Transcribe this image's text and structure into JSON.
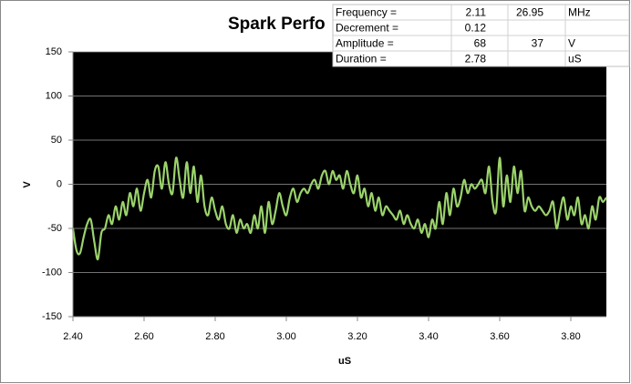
{
  "chart_data": {
    "type": "line",
    "title": "Spark Perfo",
    "xlabel": "uS",
    "ylabel": "V",
    "color": "#9bd36b",
    "background": "#000000",
    "grid": true,
    "xlim": [
      2.4,
      3.9
    ],
    "ylim": [
      -150,
      150
    ],
    "xticks": [
      {
        "value": 2.4,
        "label": "2.40"
      },
      {
        "value": 2.6,
        "label": "2.60"
      },
      {
        "value": 2.8,
        "label": "2.80"
      },
      {
        "value": 3.0,
        "label": "3.00"
      },
      {
        "value": 3.2,
        "label": "3.20"
      },
      {
        "value": 3.4,
        "label": "3.40"
      },
      {
        "value": 3.6,
        "label": "3.60"
      },
      {
        "value": 3.8,
        "label": "3.80"
      }
    ],
    "yticks": [
      -150,
      -100,
      -50,
      0,
      50,
      100,
      150
    ],
    "x": [
      2.4,
      2.41,
      2.42,
      2.43,
      2.44,
      2.45,
      2.46,
      2.47,
      2.48,
      2.49,
      2.5,
      2.51,
      2.52,
      2.53,
      2.54,
      2.55,
      2.56,
      2.57,
      2.58,
      2.59,
      2.6,
      2.61,
      2.62,
      2.63,
      2.64,
      2.65,
      2.66,
      2.67,
      2.68,
      2.69,
      2.7,
      2.71,
      2.72,
      2.73,
      2.74,
      2.75,
      2.76,
      2.77,
      2.78,
      2.79,
      2.8,
      2.81,
      2.82,
      2.83,
      2.84,
      2.85,
      2.86,
      2.87,
      2.88,
      2.89,
      2.9,
      2.91,
      2.92,
      2.93,
      2.94,
      2.95,
      2.96,
      2.97,
      2.98,
      2.99,
      3.0,
      3.01,
      3.02,
      3.03,
      3.04,
      3.05,
      3.06,
      3.07,
      3.08,
      3.09,
      3.1,
      3.11,
      3.12,
      3.13,
      3.14,
      3.15,
      3.16,
      3.17,
      3.18,
      3.19,
      3.2,
      3.21,
      3.22,
      3.23,
      3.24,
      3.25,
      3.26,
      3.27,
      3.28,
      3.29,
      3.3,
      3.31,
      3.32,
      3.33,
      3.34,
      3.35,
      3.36,
      3.37,
      3.38,
      3.39,
      3.4,
      3.41,
      3.42,
      3.43,
      3.44,
      3.45,
      3.46,
      3.47,
      3.48,
      3.49,
      3.5,
      3.51,
      3.52,
      3.53,
      3.54,
      3.55,
      3.56,
      3.57,
      3.58,
      3.59,
      3.6,
      3.61,
      3.62,
      3.63,
      3.64,
      3.65,
      3.66,
      3.67,
      3.68,
      3.69,
      3.7,
      3.71,
      3.72,
      3.73,
      3.74,
      3.75,
      3.76,
      3.77,
      3.78,
      3.79,
      3.8,
      3.81,
      3.82,
      3.83,
      3.84,
      3.85,
      3.86,
      3.87,
      3.88,
      3.89,
      3.9
    ],
    "values": [
      -50,
      -75,
      -78,
      -60,
      -45,
      -40,
      -65,
      -85,
      -55,
      -50,
      -35,
      -45,
      -25,
      -40,
      -20,
      -35,
      -10,
      -25,
      -5,
      -30,
      -10,
      5,
      -15,
      15,
      20,
      -5,
      25,
      0,
      -10,
      30,
      5,
      -15,
      25,
      -10,
      20,
      -20,
      10,
      -25,
      -35,
      -15,
      -30,
      -40,
      -25,
      -45,
      -50,
      -35,
      -55,
      -40,
      -50,
      -45,
      -55,
      -35,
      -50,
      -25,
      -55,
      -20,
      -45,
      -30,
      -10,
      -25,
      -35,
      -15,
      -5,
      -20,
      -10,
      -5,
      -10,
      0,
      5,
      -5,
      10,
      15,
      0,
      15,
      5,
      10,
      -5,
      15,
      0,
      -10,
      10,
      -15,
      -5,
      -25,
      -10,
      -30,
      -15,
      -35,
      -25,
      -30,
      -35,
      -40,
      -30,
      -45,
      -35,
      -45,
      -50,
      -40,
      -55,
      -45,
      -60,
      -40,
      -50,
      -20,
      -45,
      -10,
      -35,
      -5,
      -25,
      -15,
      5,
      -10,
      0,
      -5,
      0,
      5,
      -10,
      20,
      -20,
      -30,
      30,
      -25,
      10,
      -20,
      20,
      -10,
      15,
      -30,
      -15,
      -25,
      -30,
      -25,
      -30,
      -35,
      -30,
      -20,
      -50,
      -30,
      -15,
      -40,
      -25,
      -35,
      -15,
      -45,
      -35,
      -50,
      -25,
      -40,
      -15,
      -20,
      -15
    ]
  },
  "table": {
    "rows": [
      [
        "Frequency =",
        2.11,
        26.95,
        "MHz"
      ],
      [
        "Decrement =",
        0.12,
        null,
        null
      ],
      [
        "Amplitude =",
        68,
        37,
        "V"
      ],
      [
        "Duration =",
        2.78,
        null,
        "uS"
      ]
    ]
  }
}
